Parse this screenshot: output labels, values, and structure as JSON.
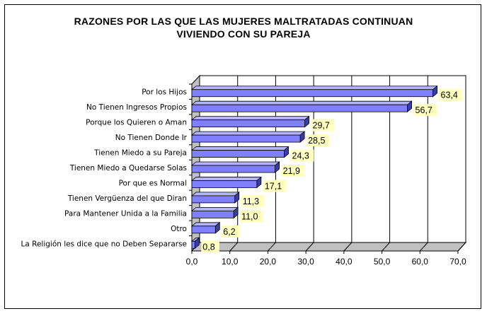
{
  "chart_data": {
    "type": "bar",
    "orientation": "horizontal",
    "title_line1": "RAZONES POR LAS QUE LAS MUJERES MALTRATADAS CONTINUAN",
    "title_line2": "VIVIENDO CON SU PAREJA",
    "categories": [
      "Por los Hijos",
      "No Tienen Ingresos Propios",
      "Porque los Quieren o Aman",
      "No Tienen Donde Ir",
      "Tienen Miedo a su Pareja",
      "Tienen Miedo a Quedarse Solas",
      "Por que es Normal",
      "Tienen Vergüenza del que Diran",
      "Para Mantener Unida a la Familia",
      "Otro",
      "La Religión les dice que no Deben Separarse"
    ],
    "values": [
      63.4,
      56.7,
      29.7,
      28.5,
      24.3,
      21.9,
      17.1,
      11.3,
      11.0,
      6.2,
      0.8
    ],
    "value_labels": [
      "63,4",
      "56,7",
      "29,7",
      "28,5",
      "24,3",
      "21,9",
      "17,1",
      "11,3",
      "11,0",
      "6,2",
      "0,8"
    ],
    "xlim": [
      0,
      70
    ],
    "x_ticks": [
      "0,0",
      "10,0",
      "20,0",
      "30,0",
      "40,0",
      "50,0",
      "60,0",
      "70,0"
    ],
    "gridlines": true,
    "legend": "none",
    "style": "3d",
    "bar_color": "#8080ff",
    "bar_top_color": "#b3b3ff",
    "bar_side_color": "#3c3ca8",
    "label_bg_color": "#ffffc0"
  }
}
